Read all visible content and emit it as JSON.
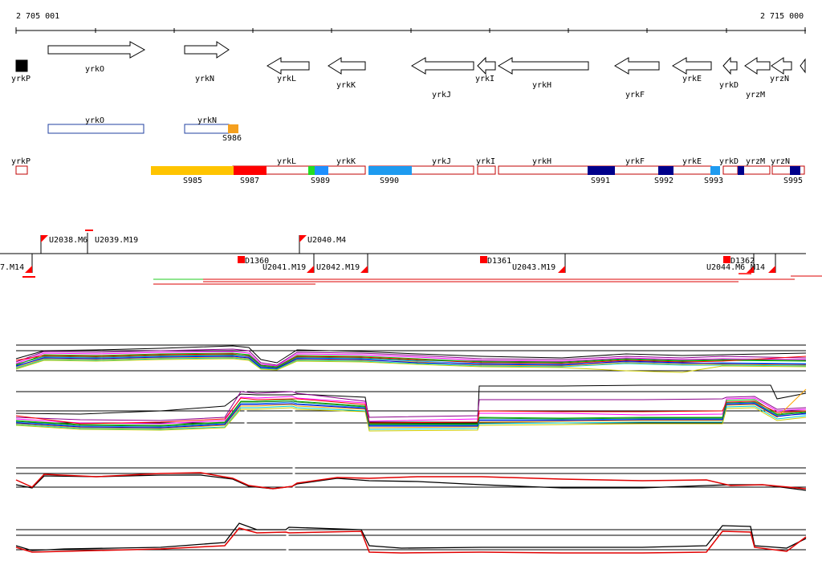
{
  "ruler": {
    "start_label": "2 705 001",
    "end_label": "2 715 000"
  },
  "genes": [
    {
      "name": "yrkP",
      "dir": "none"
    },
    {
      "name": "yrkO",
      "dir": "right"
    },
    {
      "name": "yrkN",
      "dir": "right"
    },
    {
      "name": "yrkL",
      "dir": "left"
    },
    {
      "name": "yrkK",
      "dir": "left"
    },
    {
      "name": "yrkJ",
      "dir": "left"
    },
    {
      "name": "yrkI",
      "dir": "left"
    },
    {
      "name": "yrkH",
      "dir": "left"
    },
    {
      "name": "yrkF",
      "dir": "left"
    },
    {
      "name": "yrkE",
      "dir": "left"
    },
    {
      "name": "yrkD",
      "dir": "left"
    },
    {
      "name": "yrzM",
      "dir": "left"
    },
    {
      "name": "yrzN",
      "dir": "left"
    }
  ],
  "operons_top": [
    {
      "name": "yrkO"
    },
    {
      "name": "yrkN"
    }
  ],
  "operons_main": [
    {
      "name": "yrkP"
    },
    {
      "name": "yrkL"
    },
    {
      "name": "yrkK"
    },
    {
      "name": "yrkJ"
    },
    {
      "name": "yrkI"
    },
    {
      "name": "yrkH"
    },
    {
      "name": "yrkF"
    },
    {
      "name": "yrkE"
    },
    {
      "name": "yrkD"
    },
    {
      "name": "yrzM"
    },
    {
      "name": "yrzN"
    }
  ],
  "segments_top": [
    {
      "name": "S986",
      "color": "#f5a01e"
    }
  ],
  "segments": [
    {
      "name": "S985",
      "color": "#ffc400"
    },
    {
      "name": "S987",
      "color": "#ff0000"
    },
    {
      "name": "S989",
      "color": "#1e90ff"
    },
    {
      "name": "S990",
      "color": "#1e9bf0"
    },
    {
      "name": "S991",
      "color": "#00008b"
    },
    {
      "name": "S992",
      "color": "#00008b"
    },
    {
      "name": "S993",
      "color": "#1e9bf0"
    },
    {
      "name": "S995",
      "color": "#00008b"
    }
  ],
  "features_upper": [
    {
      "label": "U2038.M6"
    },
    {
      "label": "U2039.M19"
    },
    {
      "label": "U2040.M4"
    }
  ],
  "features_lower": [
    {
      "label": "7.M14"
    },
    {
      "label": "D1360"
    },
    {
      "label": "U2041.M19"
    },
    {
      "label": "U2042.M19"
    },
    {
      "label": "D1361"
    },
    {
      "label": "U2043.M19"
    },
    {
      "label": "U2044.M6"
    },
    {
      "label": "D1362"
    },
    {
      "label": "M14"
    }
  ]
}
